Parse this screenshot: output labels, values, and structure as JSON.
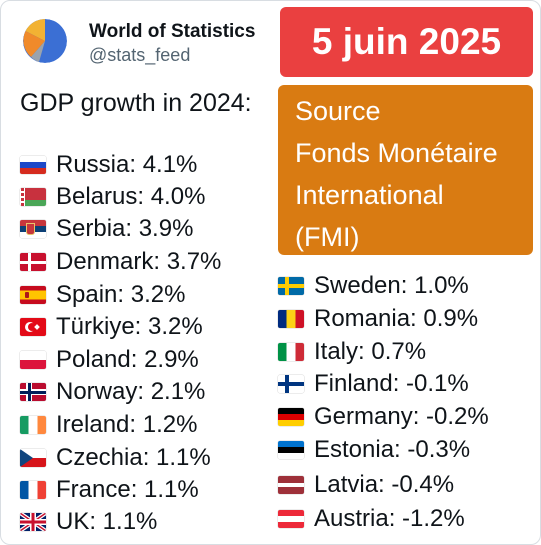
{
  "post": {
    "account_name": "World of Statistics",
    "handle": "@stats_feed",
    "date": "5 juin 2025",
    "source_lines": [
      "Source",
      "Fonds Monétaire",
      "International",
      "(FMI)"
    ],
    "heading": "GDP growth in 2024:"
  },
  "left_list": [
    {
      "label": "Russia: 4.1%",
      "flag": "russia-flag-icon"
    },
    {
      "label": "Belarus: 4.0%",
      "flag": "belarus-flag-icon"
    },
    {
      "label": "Serbia: 3.9%",
      "flag": "serbia-flag-icon"
    },
    {
      "label": "Denmark: 3.7%",
      "flag": "denmark-flag-icon"
    },
    {
      "label": "Spain: 3.2%",
      "flag": "spain-flag-icon"
    },
    {
      "label": "Türkiye: 3.2%",
      "flag": "turkey-flag-icon"
    },
    {
      "label": "Poland: 2.9%",
      "flag": "poland-flag-icon"
    },
    {
      "label": "Norway: 2.1%",
      "flag": "norway-flag-icon"
    },
    {
      "label": "Ireland: 1.2%",
      "flag": "ireland-flag-icon"
    },
    {
      "label": "Czechia: 1.1%",
      "flag": "czechia-flag-icon"
    },
    {
      "label": "France: 1.1%",
      "flag": "france-flag-icon"
    },
    {
      "label": "UK: 1.1%",
      "flag": "uk-flag-icon"
    }
  ],
  "right_list": [
    {
      "label": "Sweden: 1.0%",
      "flag": "sweden-flag-icon"
    },
    {
      "label": "Romania: 0.9%",
      "flag": "romania-flag-icon"
    },
    {
      "label": "Italy: 0.7%",
      "flag": "italy-flag-icon"
    },
    {
      "label": "Finland: -0.1%",
      "flag": "finland-flag-icon"
    },
    {
      "label": "Germany: -0.2%",
      "flag": "germany-flag-icon"
    },
    {
      "label": "Estonia: -0.3%",
      "flag": "estonia-flag-icon"
    },
    {
      "label": "Latvia: -0.4%",
      "flag": "latvia-flag-icon"
    },
    {
      "label": "Austria: -1.2%",
      "flag": "austria-flag-icon"
    }
  ],
  "colors": {
    "date_box": "#ea4040",
    "source_box": "#d97b12",
    "handle_text": "#536471"
  }
}
